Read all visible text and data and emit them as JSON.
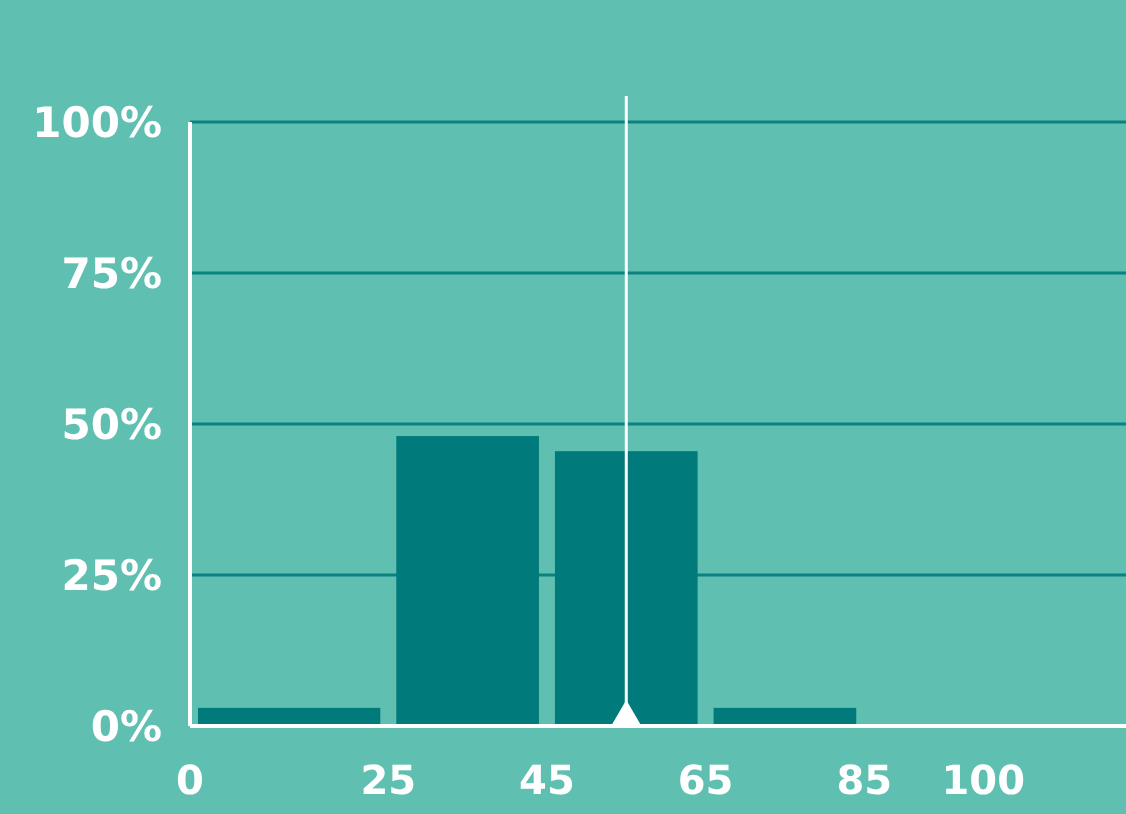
{
  "chart_data": {
    "type": "histogram",
    "bins": [
      0,
      25,
      45,
      65,
      85
    ],
    "values": [
      3,
      48,
      45.5,
      3
    ],
    "color": "#007a7a",
    "xlim": [
      0,
      118
    ],
    "xticks": [
      0,
      25,
      45,
      65,
      85,
      100
    ],
    "ylim": [
      0,
      100
    ],
    "yticks": [
      {
        "value": 0,
        "label": "0%"
      },
      {
        "value": 25,
        "label": "25%"
      },
      {
        "value": 50,
        "label": "50%"
      },
      {
        "value": 75,
        "label": "75%"
      },
      {
        "value": 100,
        "label": "100%"
      }
    ],
    "grid": "y",
    "ref_lines": [
      {
        "axis": "x",
        "value": 55,
        "color": "#ffffff"
      }
    ]
  }
}
